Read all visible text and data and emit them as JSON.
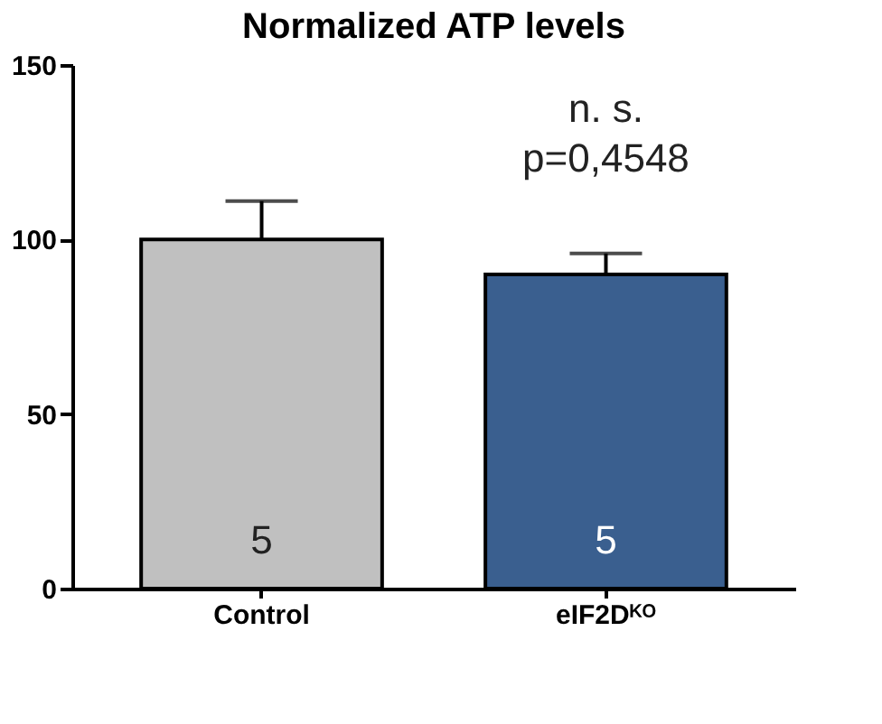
{
  "chart_data": {
    "type": "bar",
    "title": "Normalized ATP levels",
    "categories": [
      "Control",
      "eIF2Dᴷᴼ"
    ],
    "values": [
      100,
      90
    ],
    "colors": [
      "#c0c0c0",
      "#3a5f8f"
    ],
    "errors": [
      [
        100,
        111
      ],
      [
        90,
        96
      ]
    ],
    "ylim": [
      0,
      150
    ],
    "yticks": [
      0,
      50,
      100,
      150
    ],
    "grid": false,
    "annotations": [
      "5",
      "5",
      "n. s.",
      "p=0,4548"
    ]
  }
}
